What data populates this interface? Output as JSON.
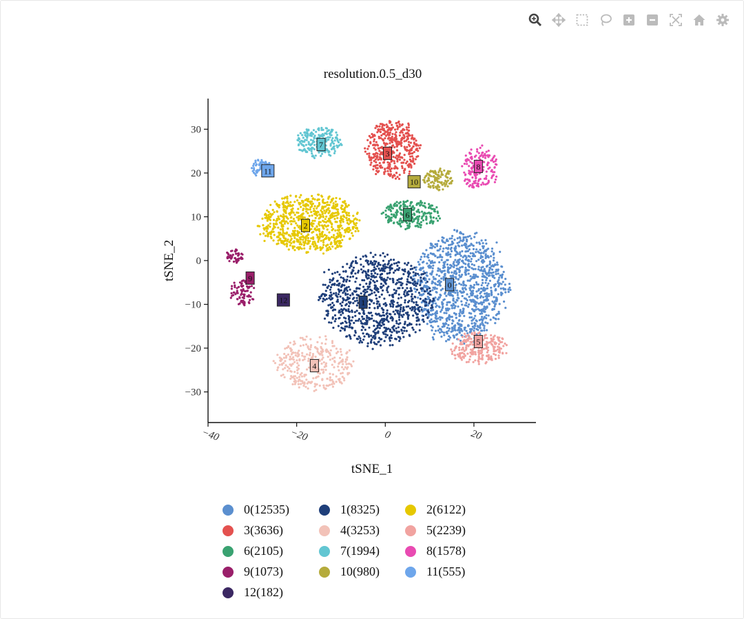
{
  "toolbar": {
    "buttons": [
      {
        "name": "zoom-icon",
        "active": true
      },
      {
        "name": "pan-icon"
      },
      {
        "name": "box-select-icon"
      },
      {
        "name": "lasso-icon"
      },
      {
        "name": "zoom-in-icon"
      },
      {
        "name": "zoom-out-icon"
      },
      {
        "name": "autoscale-icon"
      },
      {
        "name": "home-icon"
      },
      {
        "name": "settings-icon"
      }
    ]
  },
  "chart_data": {
    "type": "scatter",
    "title": "resolution.0.5_d30",
    "xlabel": "tSNE_1",
    "ylabel": "tSNE_2",
    "xlim": [
      -40,
      34
    ],
    "ylim": [
      -37,
      37
    ],
    "xticks": [
      -40,
      -20,
      0,
      20
    ],
    "yticks": [
      -30,
      -20,
      -10,
      0,
      10,
      20,
      30
    ],
    "grid": false,
    "legend_position": "bottom",
    "clusters": [
      {
        "id": "0",
        "legend": "0(12535)",
        "color": "#5b8fcf",
        "label_x": 14.5,
        "label_y": -5.5,
        "blobs": [
          [
            17,
            -6,
            10.5,
            12,
            1100
          ]
        ]
      },
      {
        "id": "1",
        "legend": "1(8325)",
        "color": "#1f3f7a",
        "label_x": -5,
        "label_y": -9.5,
        "blobs": [
          [
            -2,
            -9,
            12.5,
            10,
            900
          ]
        ]
      },
      {
        "id": "2",
        "legend": "2(6122)",
        "color": "#e6c800",
        "label_x": -18,
        "label_y": 8,
        "blobs": [
          [
            -17,
            8.5,
            11,
            6.5,
            750
          ]
        ]
      },
      {
        "id": "3",
        "legend": "3(3636)",
        "color": "#e4514f",
        "label_x": 0.5,
        "label_y": 24.5,
        "blobs": [
          [
            1.5,
            25.5,
            6,
            6.5,
            420
          ]
        ]
      },
      {
        "id": "4",
        "legend": "4(3253)",
        "color": "#f2c2b8",
        "label_x": -16,
        "label_y": -24,
        "blobs": [
          [
            -16,
            -23.5,
            8.5,
            6,
            330
          ]
        ]
      },
      {
        "id": "5",
        "legend": "5(2239)",
        "color": "#f1a3a0",
        "label_x": 21,
        "label_y": -18.5,
        "blobs": [
          [
            21,
            -20,
            6.5,
            3.5,
            240
          ]
        ]
      },
      {
        "id": "6",
        "legend": "6(2105)",
        "color": "#3aa271",
        "label_x": 5,
        "label_y": 10.5,
        "blobs": [
          [
            6,
            10.5,
            6.5,
            3.2,
            230
          ]
        ]
      },
      {
        "id": "7",
        "legend": "7(1994)",
        "color": "#62c6d2",
        "label_x": -14.5,
        "label_y": 26.5,
        "blobs": [
          [
            -15,
            27,
            5,
            3.5,
            200
          ]
        ]
      },
      {
        "id": "8",
        "legend": "8(1578)",
        "color": "#e94bb2",
        "label_x": 21,
        "label_y": 21.5,
        "blobs": [
          [
            21.5,
            21,
            4,
            5,
            170
          ]
        ]
      },
      {
        "id": "9",
        "legend": "9(1073)",
        "color": "#9a1f6a",
        "label_x": -30.5,
        "label_y": -4,
        "blobs": [
          [
            -32,
            -7.5,
            2.8,
            3,
            80
          ],
          [
            -34,
            1,
            2,
            1.5,
            50
          ]
        ]
      },
      {
        "id": "10",
        "legend": "10(980)",
        "color": "#b5ab3c",
        "label_x": 6.5,
        "label_y": 18,
        "blobs": [
          [
            12,
            18.5,
            3.5,
            2.3,
            110
          ]
        ]
      },
      {
        "id": "11",
        "legend": "11(555)",
        "color": "#6ea6eb",
        "label_x": -26.5,
        "label_y": 20.5,
        "blobs": [
          [
            -28,
            21,
            2.3,
            2,
            60
          ]
        ]
      },
      {
        "id": "12",
        "legend": "12(182)",
        "color": "#3b2862",
        "label_x": -23,
        "label_y": -9,
        "blobs": [
          [
            -23,
            -9,
            0.6,
            0.6,
            6
          ]
        ]
      }
    ]
  }
}
